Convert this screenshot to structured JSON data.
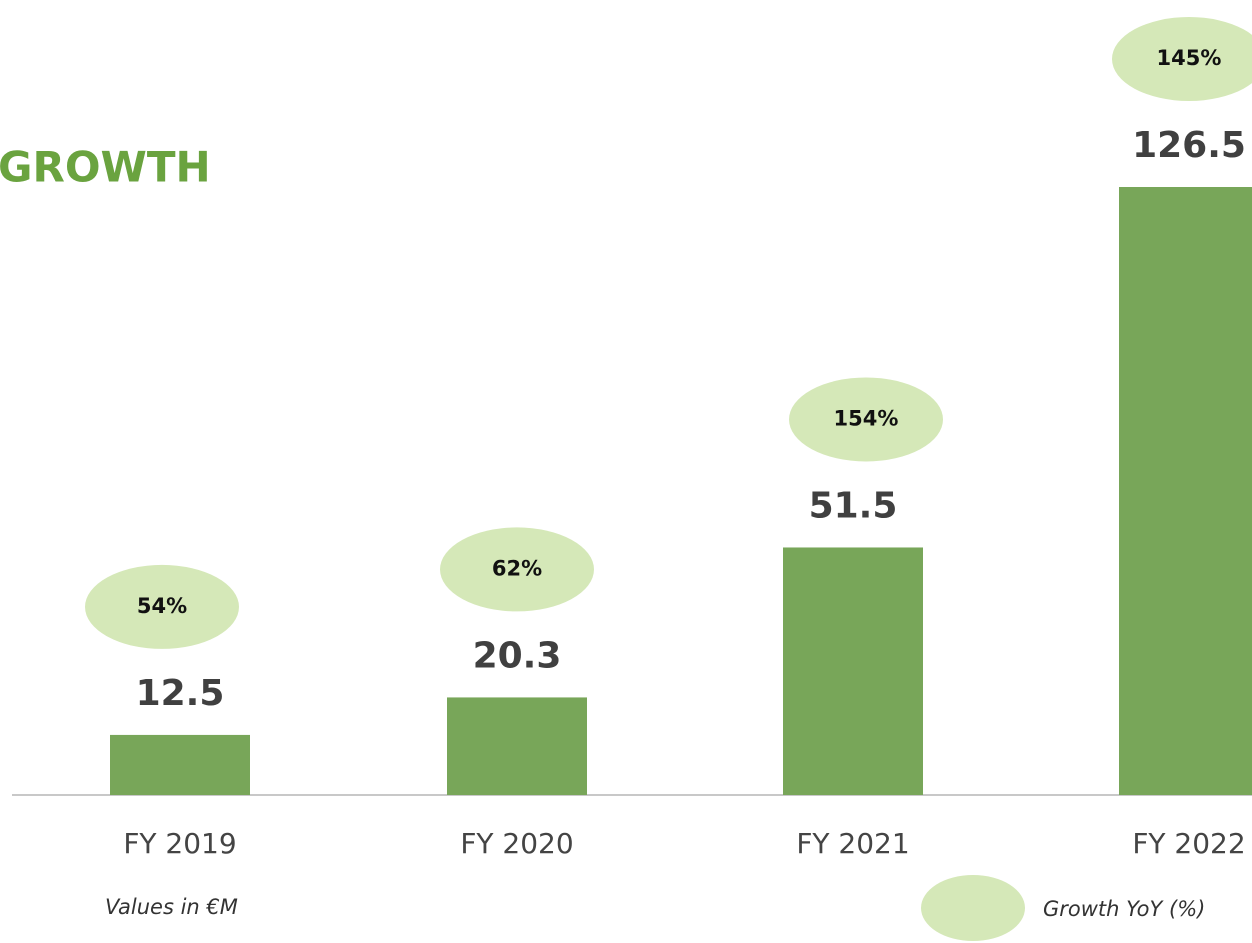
{
  "chart_data": {
    "type": "bar",
    "title": "GROWTH",
    "note": "Values in €M",
    "categories": [
      "FY 2019",
      "FY 2020",
      "FY 2021",
      "FY 2022"
    ],
    "values": [
      12.5,
      20.3,
      51.5,
      126.5
    ],
    "color": "#78a659",
    "ylim": [
      0,
      126.5
    ],
    "growth": {
      "name": "Growth YoY (%)",
      "color": "#d5e8b8",
      "values": [
        54,
        62,
        154,
        145
      ],
      "value_labels": [
        "54%",
        "62%",
        "154%",
        "145%"
      ]
    }
  }
}
